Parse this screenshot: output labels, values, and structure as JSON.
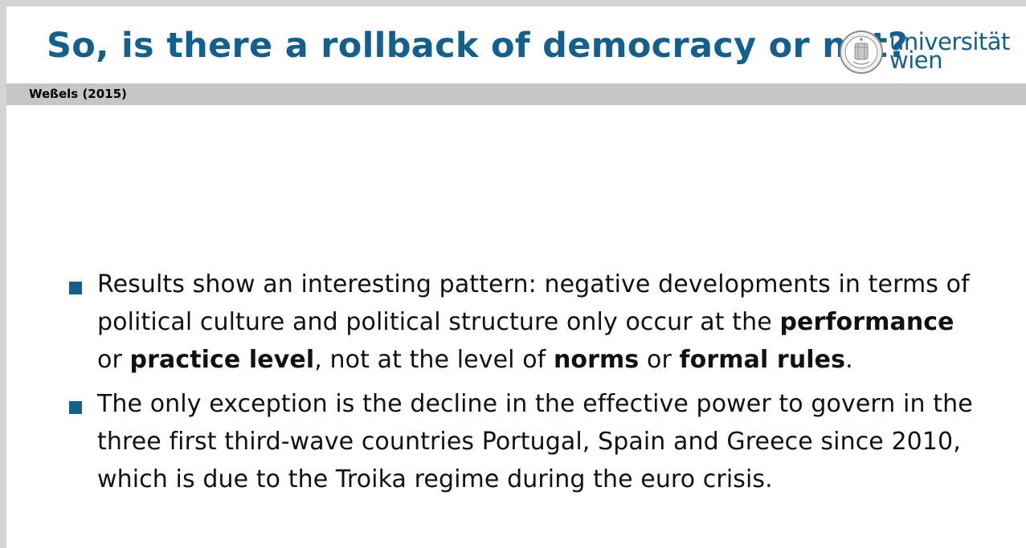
{
  "slide": {
    "title": "So, is there a rollback of democracy or not?",
    "logo": {
      "line1": "universität",
      "line2": "wien",
      "icon": "university-seal-icon"
    },
    "subtitle": "Weßels (2015)",
    "colors": {
      "accent": "#135f8e",
      "bar": "#c6c6c6"
    }
  },
  "bullets": [
    {
      "parts": {
        "t1": "Results show an interesting pattern: negative developments in terms of political culture and political structure only occur at the ",
        "b1": "performance",
        "t2": " or ",
        "b2": "practice level",
        "t3": ", not at the level of ",
        "b3": "norms",
        "t4": " or ",
        "b4": "formal rules",
        "t5": "."
      }
    },
    {
      "text": "The only exception is the decline in the effective power to govern in the three first third-wave countries Portugal, Spain and Greece since 2010, which is due to the Troika regime during the euro crisis."
    }
  ]
}
